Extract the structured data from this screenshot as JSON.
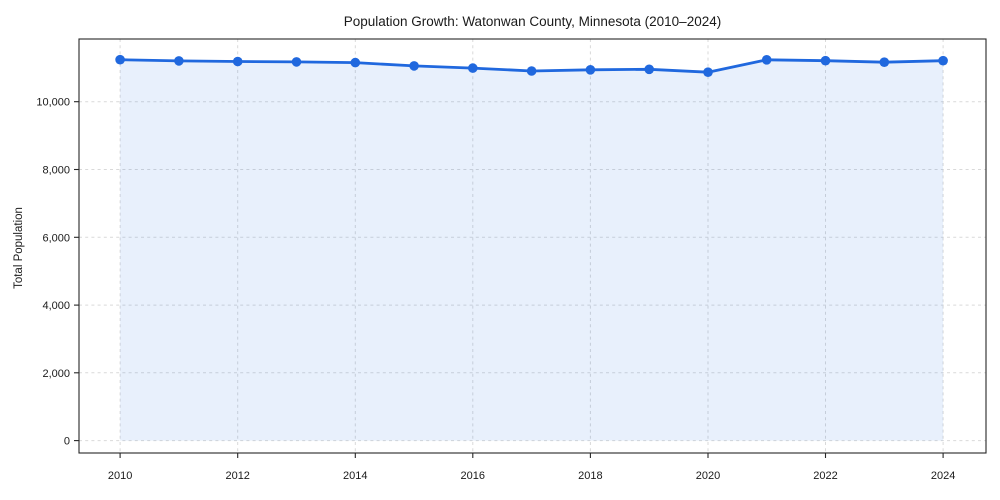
{
  "chart": {
    "title": "Population Growth: Watonwan County, Minnesota (2010–2024)"
  },
  "chart_data": {
    "type": "line",
    "title": "Population Growth: Watonwan County, Minnesota (2010–2024)",
    "xlabel": "",
    "ylabel": "Total Population",
    "x": [
      2010,
      2011,
      2012,
      2013,
      2014,
      2015,
      2016,
      2017,
      2018,
      2019,
      2020,
      2021,
      2022,
      2023,
      2024
    ],
    "series": [
      {
        "name": "Total Population",
        "values": [
          11240,
          11205,
          11185,
          11175,
          11155,
          11055,
          10990,
          10905,
          10940,
          10955,
          10870,
          11235,
          11210,
          11165,
          11210
        ]
      }
    ],
    "xticks": [
      2010,
      2012,
      2014,
      2016,
      2018,
      2020,
      2022,
      2024
    ],
    "yticks": [
      0,
      2000,
      4000,
      6000,
      8000,
      10000
    ],
    "ytick_labels": [
      "0",
      "2,000",
      "4,000",
      "6,000",
      "8,000",
      "10,000"
    ],
    "xlim": [
      2009.3,
      2024.73
    ],
    "ylim": [
      -365,
      11850
    ],
    "grid": true,
    "legend": "none",
    "marker": "circle",
    "area_fill": true,
    "fill_baseline": 0,
    "colors": {
      "line": "#2068de",
      "fill": "#2068de",
      "fill_opacity": 0.1,
      "grid": "#d9d9d9",
      "axis": "#262626",
      "text": "#1a1a1a"
    }
  }
}
